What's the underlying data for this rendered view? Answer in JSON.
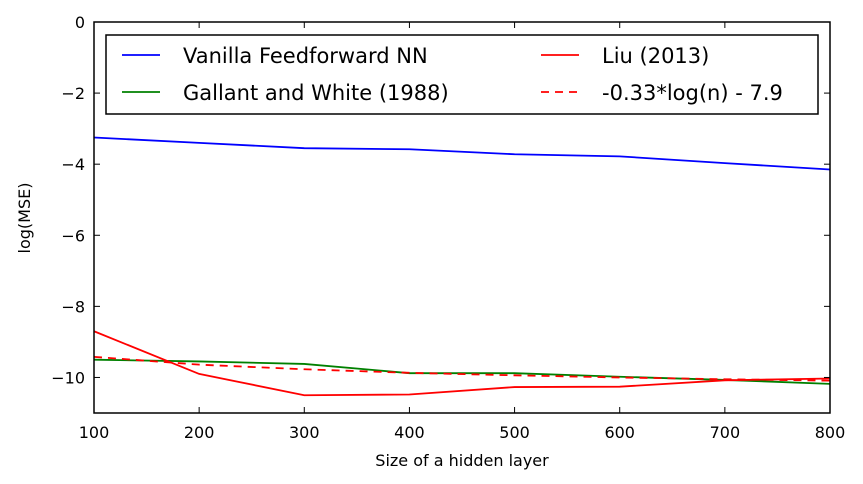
{
  "chart_data": {
    "type": "line",
    "title": "",
    "xlabel": "Size of a hidden layer",
    "ylabel": "log(MSE)",
    "xlim": [
      100,
      800
    ],
    "ylim": [
      -11,
      0
    ],
    "xticks": [
      "100",
      "200",
      "300",
      "400",
      "500",
      "600",
      "700",
      "800"
    ],
    "yticks": [
      "0",
      "−2",
      "−4",
      "−6",
      "−8",
      "−10"
    ],
    "x": [
      100,
      200,
      300,
      400,
      500,
      600,
      700,
      800
    ],
    "legend_position": "top",
    "grid": false,
    "series": [
      {
        "name": "Vanilla Feedforward NN",
        "color": "#0000ff",
        "dash": "solid",
        "values": [
          -3.25,
          -3.4,
          -3.55,
          -3.58,
          -3.72,
          -3.78,
          -3.97,
          -4.15
        ]
      },
      {
        "name": "Gallant and White (1988)",
        "color": "#008000",
        "dash": "solid",
        "values": [
          -9.5,
          -9.55,
          -9.62,
          -9.88,
          -9.88,
          -9.98,
          -10.07,
          -10.18
        ]
      },
      {
        "name": "Liu (2013)",
        "color": "#ff0000",
        "dash": "solid",
        "values": [
          -8.7,
          -9.9,
          -10.5,
          -10.48,
          -10.27,
          -10.26,
          -10.08,
          -10.03
        ]
      },
      {
        "name": "-0.33*log(n) - 7.9",
        "color": "#ff0000",
        "dash": "dashed",
        "values": [
          -9.42,
          -9.64,
          -9.77,
          -9.87,
          -9.94,
          -10.0,
          -10.05,
          -10.09
        ]
      }
    ]
  }
}
